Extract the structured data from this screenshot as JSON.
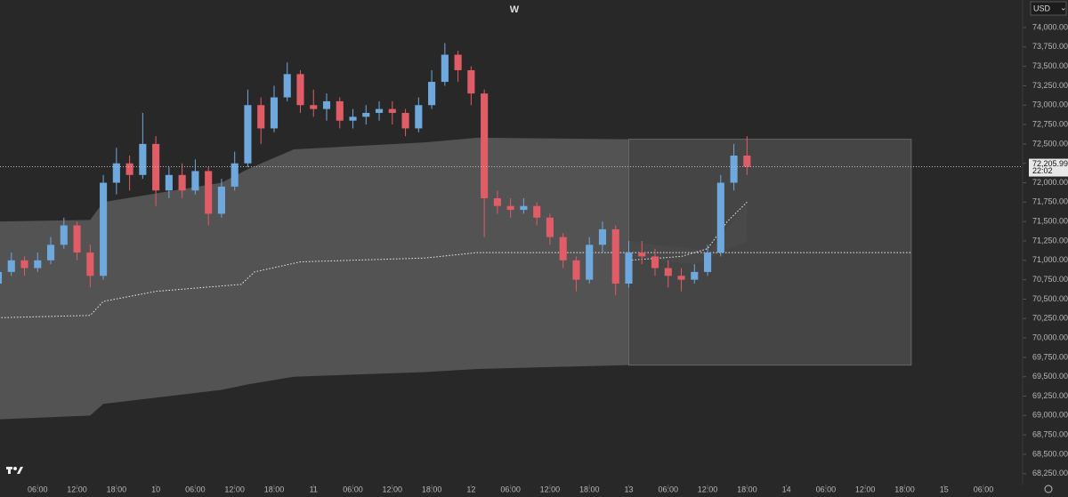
{
  "chart_data": {
    "type": "candlestick",
    "title": "W",
    "currency": "USD",
    "up_color": "#6fa8dc",
    "down_color": "#e05c66",
    "xlim": [
      0,
      156
    ],
    "ylim": [
      68110,
      74355
    ],
    "xticks": [
      {
        "value": 6,
        "label": "06:00"
      },
      {
        "value": 12,
        "label": "12:00"
      },
      {
        "value": 18,
        "label": "18:00"
      },
      {
        "value": 24,
        "label": "10"
      },
      {
        "value": 30,
        "label": "06:00"
      },
      {
        "value": 36,
        "label": "12:00"
      },
      {
        "value": 42,
        "label": "18:00"
      },
      {
        "value": 48,
        "label": "11"
      },
      {
        "value": 54,
        "label": "06:00"
      },
      {
        "value": 60,
        "label": "12:00"
      },
      {
        "value": 66,
        "label": "18:00"
      },
      {
        "value": 72,
        "label": "12"
      },
      {
        "value": 78,
        "label": "06:00"
      },
      {
        "value": 84,
        "label": "12:00"
      },
      {
        "value": 90,
        "label": "18:00"
      },
      {
        "value": 96,
        "label": "13"
      },
      {
        "value": 102,
        "label": "06:00"
      },
      {
        "value": 108,
        "label": "12:00"
      },
      {
        "value": 114,
        "label": "18:00"
      },
      {
        "value": 120,
        "label": "14"
      },
      {
        "value": 126,
        "label": "06:00"
      },
      {
        "value": 132,
        "label": "12:00"
      },
      {
        "value": 138,
        "label": "18:00"
      },
      {
        "value": 144,
        "label": "15"
      },
      {
        "value": 150,
        "label": "06:00"
      }
    ],
    "yticks": [
      {
        "value": 68250,
        "label": "68,250.00"
      },
      {
        "value": 68500,
        "label": "68,500.00"
      },
      {
        "value": 68750,
        "label": "68,750.00"
      },
      {
        "value": 69000,
        "label": "69,000.00"
      },
      {
        "value": 69250,
        "label": "69,250.00"
      },
      {
        "value": 69500,
        "label": "69,500.00"
      },
      {
        "value": 69750,
        "label": "69,750.00"
      },
      {
        "value": 70000,
        "label": "70,000.00"
      },
      {
        "value": 70250,
        "label": "70,250.00"
      },
      {
        "value": 70500,
        "label": "70,500.00"
      },
      {
        "value": 70750,
        "label": "70,750.00"
      },
      {
        "value": 71000,
        "label": "71,000.00"
      },
      {
        "value": 71250,
        "label": "71,250.00"
      },
      {
        "value": 71500,
        "label": "71,500.00"
      },
      {
        "value": 71750,
        "label": "71,750.00"
      },
      {
        "value": 72000,
        "label": "72,000.00"
      },
      {
        "value": 72250,
        "label": "72,250.00"
      },
      {
        "value": 72500,
        "label": "72,500.00"
      },
      {
        "value": 72750,
        "label": "72,750.00"
      },
      {
        "value": 73000,
        "label": "73,000.00"
      },
      {
        "value": 73250,
        "label": "73,250.00"
      },
      {
        "value": 73500,
        "label": "73,500.00"
      },
      {
        "value": 73750,
        "label": "73,750.00"
      },
      {
        "value": 74000,
        "label": "74,000.00"
      }
    ],
    "candles": {
      "x": [
        0,
        2,
        4,
        6,
        8,
        10,
        12,
        14,
        16,
        18,
        20,
        22,
        24,
        26,
        28,
        30,
        32,
        34,
        36,
        38,
        40,
        42,
        44,
        46,
        48,
        50,
        52,
        54,
        56,
        58,
        60,
        62,
        64,
        66,
        68,
        70,
        72,
        74,
        76,
        78,
        80,
        82,
        84,
        86,
        88,
        90,
        92,
        94,
        96,
        98,
        100,
        102,
        104,
        106,
        108,
        110,
        112,
        114
      ],
      "open": [
        70700,
        70850,
        71000,
        70900,
        71000,
        71200,
        71450,
        71100,
        70800,
        72000,
        72250,
        72100,
        72500,
        71900,
        72100,
        71900,
        72150,
        71600,
        71950,
        72250,
        73000,
        72700,
        73100,
        73400,
        73000,
        72950,
        73050,
        72800,
        72850,
        72900,
        72950,
        72900,
        72700,
        73000,
        73300,
        73650,
        73450,
        73150,
        71800,
        71700,
        71650,
        71700,
        71550,
        71300,
        71000,
        70750,
        71200,
        71400,
        70700,
        71100,
        71050,
        70900,
        70800,
        70750,
        70850,
        71100,
        72000,
        72350
      ],
      "high": [
        70950,
        71100,
        71050,
        71100,
        71300,
        71550,
        71500,
        71200,
        72100,
        72450,
        72350,
        72900,
        72600,
        72200,
        72250,
        72300,
        72200,
        72050,
        72400,
        73200,
        73100,
        73250,
        73550,
        73450,
        73200,
        73150,
        73100,
        72950,
        73000,
        73050,
        73050,
        72950,
        73100,
        73450,
        73800,
        73700,
        73500,
        73200,
        71900,
        71800,
        71800,
        71750,
        71600,
        71350,
        71050,
        71300,
        71500,
        71450,
        71250,
        71250,
        71150,
        71000,
        70900,
        70950,
        71200,
        72100,
        72500,
        72600
      ],
      "low": [
        70550,
        70800,
        70800,
        70850,
        70950,
        71150,
        71000,
        70650,
        70750,
        71850,
        71900,
        72050,
        71700,
        71800,
        71800,
        71850,
        71450,
        71550,
        71900,
        72200,
        72500,
        72650,
        73050,
        72900,
        72850,
        72800,
        72700,
        72700,
        72750,
        72800,
        72750,
        72600,
        72650,
        72950,
        73250,
        73300,
        73000,
        71300,
        71600,
        71550,
        71600,
        71450,
        71200,
        70900,
        70600,
        70700,
        71100,
        70550,
        70650,
        70950,
        70800,
        70650,
        70600,
        70700,
        70800,
        71050,
        71900,
        72100
      ],
      "close": [
        70850,
        71000,
        70900,
        71000,
        71200,
        71450,
        71100,
        70800,
        72000,
        72250,
        72100,
        72500,
        71900,
        72100,
        71900,
        72150,
        71600,
        71950,
        72250,
        73000,
        72700,
        73100,
        73400,
        73000,
        72950,
        73050,
        72800,
        72850,
        72900,
        72950,
        72900,
        72700,
        73000,
        73300,
        73650,
        73450,
        73150,
        71800,
        71700,
        71650,
        71700,
        71550,
        71300,
        71000,
        70750,
        71200,
        71400,
        70700,
        71100,
        71050,
        70900,
        70800,
        70750,
        70850,
        71100,
        72000,
        72350,
        72206
      ]
    },
    "bands": [
      {
        "x": [
          0,
          14,
          16,
          34,
          38,
          45,
          65,
          73,
          96
        ],
        "upper": [
          71500,
          71520,
          71750,
          72000,
          72175,
          72430,
          72520,
          72580,
          72560
        ],
        "lower": [
          68950,
          69000,
          69150,
          69330,
          69400,
          69500,
          69560,
          69600,
          69650
        ]
      },
      {
        "x": [
          96,
          139
        ],
        "upper": [
          72560,
          72560
        ],
        "lower": [
          69650,
          69650
        ]
      },
      {
        "x": [
          96,
          100,
          106,
          108,
          110,
          114
        ],
        "upper": [
          71250,
          71200,
          71150,
          71100,
          71300,
          71750
        ],
        "lower": [
          71050,
          71000,
          70950,
          71000,
          71100,
          71250
        ]
      }
    ],
    "lines": [
      {
        "x": [
          0,
          14,
          16,
          24,
          37,
          39,
          46,
          65,
          73,
          96
        ],
        "values": [
          70260,
          70290,
          70470,
          70600,
          70690,
          70850,
          70980,
          71030,
          71100,
          71100
        ]
      },
      {
        "x": [
          96,
          139
        ],
        "values": [
          71100,
          71100
        ]
      },
      {
        "x": [
          96,
          104,
          108,
          111,
          114
        ],
        "values": [
          71000,
          71050,
          71150,
          71500,
          71750
        ]
      }
    ],
    "last": {
      "value": 72205.99,
      "value_label": "72,205.99",
      "time": "22:02"
    }
  }
}
